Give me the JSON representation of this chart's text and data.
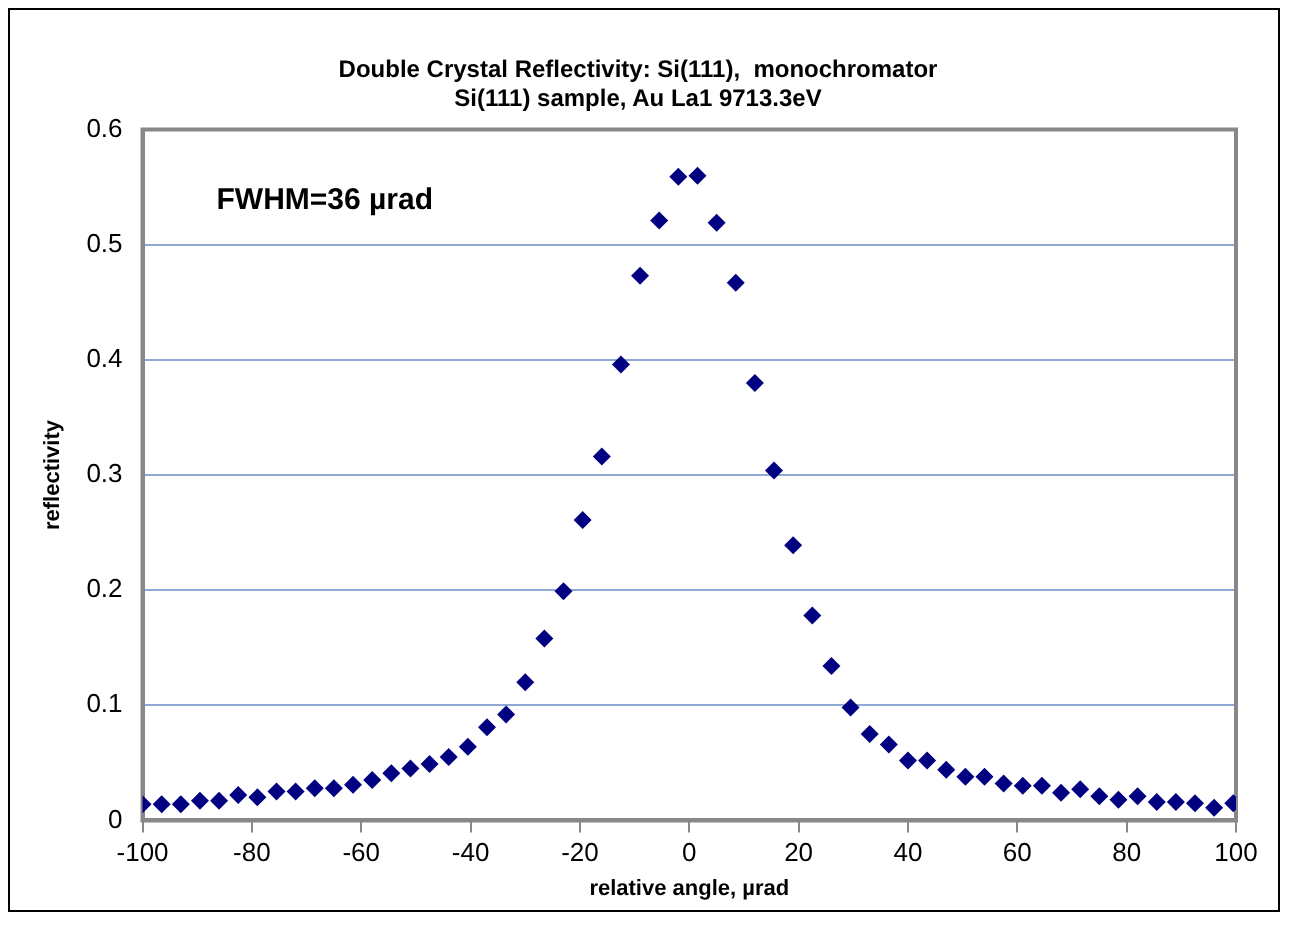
{
  "chart_data": {
    "type": "scatter",
    "title": "Double Crystal Reflectivity: Si(111),  monochromator\nSi(111) sample, Au La1 9713.3eV",
    "xlabel": "relative angle, µrad",
    "ylabel": "reflectivity",
    "annotations": [
      "FWHM=36 µrad"
    ],
    "x": [
      -100,
      -96.5,
      -93,
      -89.5,
      -86,
      -82.5,
      -79,
      -75.5,
      -72,
      -68.5,
      -65,
      -61.5,
      -58,
      -54.5,
      -51,
      -47.5,
      -44,
      -40.5,
      -37,
      -33.5,
      -30,
      -26.5,
      -23,
      -19.5,
      -16,
      -12.5,
      -9,
      -5.5,
      -2,
      1.5,
      5,
      8.5,
      12,
      15.5,
      19,
      22.5,
      26,
      29.5,
      33,
      36.5,
      40,
      43.5,
      47,
      50.5,
      54,
      57.5,
      61,
      64.5,
      68,
      71.5,
      75,
      78.5,
      82,
      85.5,
      89,
      92.5,
      96,
      99.5
    ],
    "series": [
      {
        "color": "#000080",
        "values": [
          0.014,
          0.014,
          0.014,
          0.017,
          0.017,
          0.022,
          0.02,
          0.025,
          0.025,
          0.028,
          0.028,
          0.031,
          0.035,
          0.041,
          0.045,
          0.049,
          0.055,
          0.064,
          0.081,
          0.092,
          0.12,
          0.158,
          0.199,
          0.261,
          0.316,
          0.396,
          0.473,
          0.521,
          0.559,
          0.56,
          0.519,
          0.467,
          0.38,
          0.304,
          0.239,
          0.178,
          0.134,
          0.098,
          0.075,
          0.066,
          0.052,
          0.052,
          0.044,
          0.038,
          0.038,
          0.032,
          0.03,
          0.03,
          0.024,
          0.027,
          0.021,
          0.018,
          0.021,
          0.016,
          0.016,
          0.015,
          0.011,
          0.015
        ]
      }
    ],
    "xlim": [
      -100,
      100
    ],
    "xticks": [
      -100,
      -80,
      -60,
      -40,
      -20,
      0,
      20,
      40,
      60,
      80,
      100
    ],
    "ylim": [
      0,
      0.6
    ],
    "yticks": [
      0,
      0.1,
      0.2,
      0.3,
      0.4,
      0.5,
      0.6
    ],
    "grid": "y",
    "legend": false,
    "marker": "diamond"
  }
}
